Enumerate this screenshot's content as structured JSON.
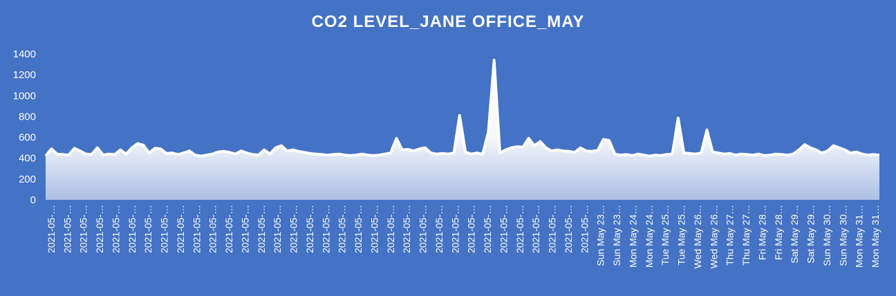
{
  "colors": {
    "background": "#4472C4",
    "series": "#FFFFFF",
    "text": "#FFFFFF"
  },
  "chart_data": {
    "type": "area",
    "title": "CO2 LEVEL_JANE OFFICE_MAY",
    "xlabel": "",
    "ylabel": "",
    "ylim": [
      0,
      1400
    ],
    "yticks": [
      0,
      200,
      400,
      600,
      800,
      1000,
      1200,
      1400
    ],
    "grid": false,
    "legend": "none",
    "x_tick_labels": [
      "2021-05-…",
      "2021-05-…",
      "2021-05-…",
      "2021-05-…",
      "2021-05-…",
      "2021-05-…",
      "2021-05-…",
      "2021-05-…",
      "2021-05-…",
      "2021-05-…",
      "2021-05-…",
      "2021-05-…",
      "2021-05-…",
      "2021-05-…",
      "2021-05-…",
      "2021-05-…",
      "2021-05-…",
      "2021-05-…",
      "2021-05-…",
      "2021-05-…",
      "2021-05-…",
      "2021-05-…",
      "2021-05-…",
      "2021-05-…",
      "2021-05-…",
      "2021-05-…",
      "2021-05-…",
      "2021-05-…",
      "2021-05-…",
      "2021-05-…",
      "2021-05-…",
      "2021-05-…",
      "2021-05-…",
      "2021-05-…",
      "Sun May 23…",
      "Sun May 23…",
      "Mon May 24…",
      "Mon May 24…",
      "Tue May 25…",
      "Tue May 25…",
      "Wed May 26…",
      "Wed May 26…",
      "Thu May 27…",
      "Thu May 27…",
      "Fri May 28…",
      "Fri May 28…",
      "Sat May 29…",
      "Sat May 29…",
      "Sun May 30…",
      "Sun May 30…",
      "Mon May 31…",
      "Mon May 31…"
    ],
    "series": [
      {
        "values": [
          420,
          490,
          440,
          435,
          430,
          495,
          470,
          440,
          435,
          500,
          430,
          440,
          435,
          480,
          440,
          500,
          540,
          525,
          450,
          495,
          490,
          445,
          450,
          435,
          450,
          470,
          430,
          420,
          430,
          440,
          460,
          465,
          455,
          440,
          470,
          450,
          435,
          430,
          480,
          440,
          500,
          520,
          470,
          480,
          465,
          455,
          445,
          440,
          435,
          430,
          435,
          440,
          430,
          425,
          430,
          440,
          430,
          425,
          430,
          440,
          450,
          590,
          480,
          485,
          470,
          490,
          500,
          450,
          440,
          445,
          440,
          450,
          810,
          460,
          440,
          450,
          440,
          650,
          1340,
          450,
          480,
          500,
          510,
          505,
          590,
          520,
          560,
          500,
          470,
          480,
          470,
          465,
          455,
          500,
          470,
          465,
          475,
          580,
          570,
          440,
          430,
          435,
          425,
          440,
          430,
          420,
          430,
          425,
          435,
          440,
          785,
          450,
          445,
          440,
          450,
          670,
          460,
          450,
          440,
          445,
          430,
          440,
          435,
          430,
          440,
          425,
          430,
          440,
          435,
          430,
          440,
          480,
          530,
          500,
          480,
          450,
          470,
          520,
          500,
          480,
          450,
          460,
          440,
          430,
          435,
          430
        ]
      }
    ]
  }
}
